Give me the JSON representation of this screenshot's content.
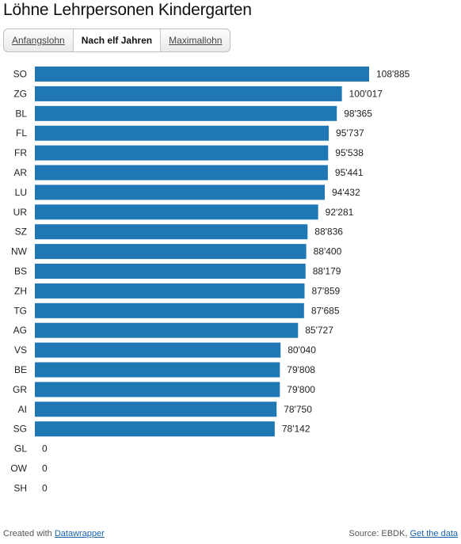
{
  "title": "Löhne Lehrpersonen Kindergarten",
  "tabs": [
    {
      "label": "Anfangslohn",
      "active": false
    },
    {
      "label": "Nach elf Jahren",
      "active": true
    },
    {
      "label": "Maximallohn",
      "active": false
    }
  ],
  "footer": {
    "created_prefix": "Created with",
    "created_link": "Datawrapper",
    "source_prefix": "Source: EBDK,",
    "source_link": "Get the data"
  },
  "colors": {
    "bar": "#1f77b4"
  },
  "chart_data": {
    "type": "bar",
    "orientation": "horizontal",
    "categories": [
      "SO",
      "ZG",
      "BL",
      "FL",
      "FR",
      "AR",
      "LU",
      "UR",
      "SZ",
      "NW",
      "BS",
      "ZH",
      "TG",
      "AG",
      "VS",
      "BE",
      "GR",
      "AI",
      "SG",
      "GL",
      "OW",
      "SH"
    ],
    "values": [
      108885,
      100017,
      98365,
      95737,
      95538,
      95441,
      94432,
      92281,
      88836,
      88400,
      88179,
      87859,
      87685,
      85727,
      80040,
      79808,
      79800,
      78750,
      78142,
      0,
      0,
      0
    ],
    "labels": [
      "108'885",
      "100'017",
      "98'365",
      "95'737",
      "95'538",
      "95'441",
      "94'432",
      "92'281",
      "88'836",
      "88'400",
      "88'179",
      "87'859",
      "87'685",
      "85'727",
      "80'040",
      "79'808",
      "79'800",
      "78'750",
      "78'142",
      "0",
      "0",
      "0"
    ],
    "xlim": [
      0,
      108885
    ],
    "grid": false,
    "title": "Löhne Lehrpersonen Kindergarten"
  }
}
